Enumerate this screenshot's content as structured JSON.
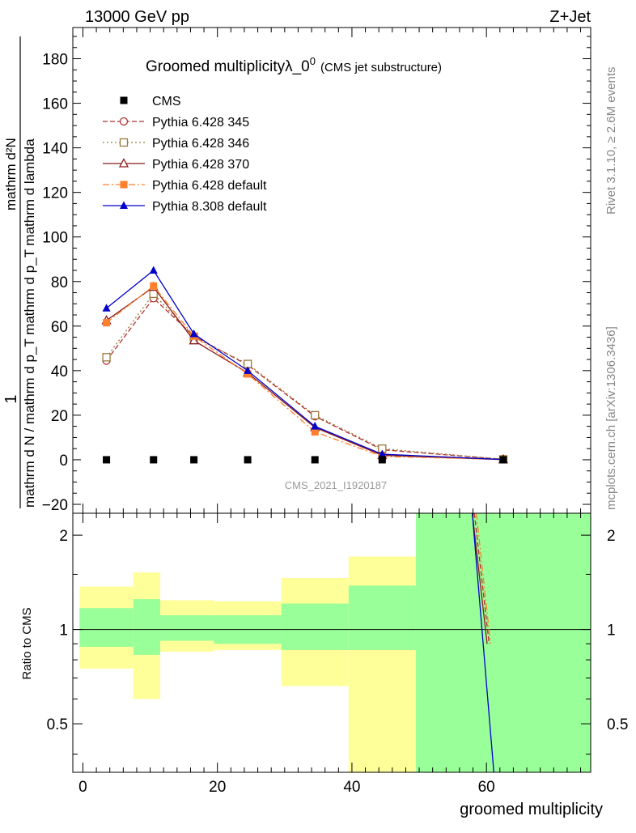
{
  "header": {
    "left": "13000 GeV pp",
    "right": "Z+Jet",
    "side_top": "Rivet 3.1.10, ≥ 2.6M events",
    "side_bottom": "mcplots.cern.ch [arXiv:1306.3436]"
  },
  "chart_data": [
    {
      "type": "line",
      "title": "Groomed multiplicityλ_0",
      "title_sup": "0",
      "subtitle": "(CMS jet substructure)",
      "ylabel_lines": [
        "1",
        "mathrm d N / mathrm d p_T mathrm d p_T mathrm d lambda",
        "mathrm d²N"
      ],
      "watermark": "CMS_2021_I1920187",
      "xlim": [
        -1.5,
        75.5
      ],
      "ylim": [
        -24,
        194
      ],
      "y_ticks": [
        -20,
        0,
        20,
        40,
        60,
        80,
        100,
        120,
        140,
        160,
        180
      ],
      "legend_position": "top-left",
      "data": {
        "name": "CMS",
        "x": [
          3.5,
          10.5,
          16.5,
          24.5,
          34.5,
          44.5,
          62.5
        ],
        "y": [
          0,
          0,
          0,
          0,
          0,
          0,
          0
        ]
      },
      "series": [
        {
          "name": "Pythia 6.428 345",
          "color": "#b03030",
          "dash": "6,3",
          "marker": "circle-open",
          "x": [
            3.5,
            10.5,
            16.5,
            24.5,
            34.5,
            44.5,
            62.5
          ],
          "y": [
            44.5,
            72.5,
            55.5,
            42.5,
            19.5,
            4.5,
            0.2
          ]
        },
        {
          "name": "Pythia 6.428 346",
          "color": "#9a7a3a",
          "dash": "2,3",
          "marker": "square-open",
          "x": [
            3.5,
            10.5,
            16.5,
            24.5,
            34.5,
            44.5,
            62.5
          ],
          "y": [
            46,
            74.5,
            55,
            43,
            20,
            5,
            0.2
          ]
        },
        {
          "name": "Pythia 6.428 370",
          "color": "#8b1a1a",
          "dash": "",
          "marker": "triangle-open",
          "x": [
            3.5,
            10.5,
            16.5,
            24.5,
            34.5,
            44.5,
            62.5
          ],
          "y": [
            62.5,
            77.5,
            53.5,
            39,
            14.5,
            2,
            0.1
          ]
        },
        {
          "name": "Pythia 6.428 default",
          "color": "#ff7f2a",
          "dash": "8,3,2,3",
          "marker": "square-filled",
          "x": [
            3.5,
            10.5,
            16.5,
            24.5,
            34.5,
            44.5,
            62.5
          ],
          "y": [
            61.5,
            78,
            55.5,
            38.5,
            12.5,
            1.5,
            0.1
          ]
        },
        {
          "name": "Pythia 8.308 default",
          "color": "#0000cc",
          "dash": "",
          "marker": "triangle-filled",
          "x": [
            3.5,
            10.5,
            16.5,
            24.5,
            34.5,
            44.5,
            62.5
          ],
          "y": [
            68,
            85,
            56.5,
            40,
            15,
            2.5,
            0.1
          ]
        }
      ]
    },
    {
      "type": "area",
      "ylabel": "Ratio to CMS",
      "xlabel": "groomed multiplicity",
      "xlim": [
        -1.5,
        75.5
      ],
      "ylim": [
        0.35,
        2.35
      ],
      "y_ticks": [
        0.5,
        1,
        2
      ],
      "x_ticks": [
        0,
        20,
        40,
        60
      ],
      "bins": [
        {
          "x0": -0.5,
          "x1": 7.5,
          "green": [
            0.88,
            1.17
          ],
          "yellow": [
            0.75,
            1.37
          ]
        },
        {
          "x0": 7.5,
          "x1": 11.5,
          "green": [
            0.83,
            1.25
          ],
          "yellow": [
            0.6,
            1.52
          ]
        },
        {
          "x0": 11.5,
          "x1": 19.5,
          "green": [
            0.92,
            1.11
          ],
          "yellow": [
            0.85,
            1.24
          ]
        },
        {
          "x0": 19.5,
          "x1": 29.5,
          "green": [
            0.9,
            1.11
          ],
          "yellow": [
            0.86,
            1.23
          ]
        },
        {
          "x0": 29.5,
          "x1": 39.5,
          "green": [
            0.86,
            1.21
          ],
          "yellow": [
            0.66,
            1.46
          ]
        },
        {
          "x0": 39.5,
          "x1": 49.5,
          "green": [
            0.86,
            1.38
          ],
          "yellow": [
            0.35,
            1.71
          ]
        },
        {
          "x0": 49.5,
          "x1": 75.5,
          "green": [
            0.35,
            2.35
          ],
          "yellow": [
            0.35,
            2.35
          ]
        }
      ],
      "ratio_lines": [
        {
          "color": "#b03030",
          "dash": "6,3",
          "points": [
            [
              58.2,
              2.35
            ],
            [
              60.4,
              0.9
            ]
          ]
        },
        {
          "color": "#ff7f2a",
          "dash": "8,3,2,3",
          "points": [
            [
              58.5,
              2.35
            ],
            [
              60.6,
              0.9
            ]
          ]
        },
        {
          "color": "#8b1a1a",
          "dash": "",
          "points": [
            [
              57.9,
              2.35
            ],
            [
              60.1,
              0.9
            ]
          ]
        },
        {
          "color": "#0000cc",
          "dash": "",
          "points": [
            [
              57.9,
              2.35
            ],
            [
              61.1,
              0.35
            ]
          ]
        }
      ]
    }
  ]
}
